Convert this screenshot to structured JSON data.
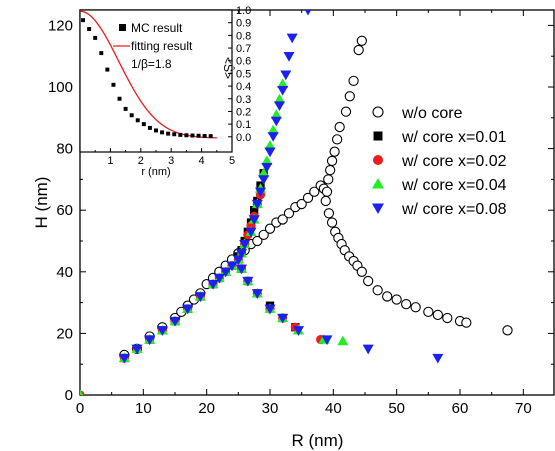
{
  "chart_data": [
    {
      "id": "main",
      "type": "scatter",
      "xlabel": "R (nm)",
      "ylabel": "H (nm)",
      "xlim": [
        0,
        75
      ],
      "ylim": [
        0,
        125
      ],
      "xticks": [
        "0",
        "10",
        "20",
        "30",
        "40",
        "50",
        "60",
        "70"
      ],
      "yticks": [
        "0",
        "20",
        "40",
        "60",
        "80",
        "100",
        "120"
      ],
      "legend_position": "right-middle",
      "series": [
        {
          "name": "w/o core",
          "marker": "open-circle",
          "color": "#000000",
          "points": [
            [
              7,
              13
            ],
            [
              9,
              15
            ],
            [
              11,
              19
            ],
            [
              13,
              22
            ],
            [
              15,
              25
            ],
            [
              16,
              27
            ],
            [
              17,
              29
            ],
            [
              18,
              31
            ],
            [
              19,
              33
            ],
            [
              20,
              36
            ],
            [
              21,
              38
            ],
            [
              22,
              40
            ],
            [
              23,
              42
            ],
            [
              24,
              44
            ],
            [
              25,
              46
            ],
            [
              26,
              47
            ],
            [
              27,
              49
            ],
            [
              28,
              50
            ],
            [
              29,
              52
            ],
            [
              30,
              54
            ],
            [
              31,
              56
            ],
            [
              32,
              57
            ],
            [
              33,
              59
            ],
            [
              34,
              61
            ],
            [
              35,
              62
            ],
            [
              36,
              64
            ],
            [
              37,
              66
            ],
            [
              38,
              68
            ],
            [
              38.5,
              67
            ],
            [
              39,
              66
            ],
            [
              39.2,
              70
            ],
            [
              39.5,
              73
            ],
            [
              39.8,
              76
            ],
            [
              40.2,
              79
            ],
            [
              40.6,
              83
            ],
            [
              41,
              87
            ],
            [
              42,
              92
            ],
            [
              42.6,
              97
            ],
            [
              43.2,
              102
            ],
            [
              44,
              112
            ],
            [
              44.5,
              115
            ],
            [
              38.8,
              63
            ],
            [
              39.3,
              59
            ],
            [
              39.8,
              56
            ],
            [
              40.3,
              53
            ],
            [
              40.8,
              51
            ],
            [
              41.3,
              49
            ],
            [
              41.8,
              47
            ],
            [
              42.5,
              45
            ],
            [
              43.2,
              43.5
            ],
            [
              43.8,
              42
            ],
            [
              44.5,
              40
            ],
            [
              45.5,
              37
            ],
            [
              47,
              34
            ],
            [
              48.5,
              32
            ],
            [
              50,
              31
            ],
            [
              51.5,
              29.5
            ],
            [
              53,
              28.5
            ],
            [
              55,
              27
            ],
            [
              56.5,
              26
            ],
            [
              58,
              25
            ],
            [
              60,
              24
            ],
            [
              61,
              23.5
            ],
            [
              67.5,
              21
            ]
          ]
        },
        {
          "name": "w/ core x=0.01",
          "marker": "square",
          "color": "#000000",
          "points": [
            [
              7,
              12
            ],
            [
              9,
              15
            ],
            [
              11,
              18
            ],
            [
              13,
              21
            ],
            [
              15,
              24
            ],
            [
              17,
              28
            ],
            [
              19,
              32
            ],
            [
              21,
              36
            ],
            [
              22,
              38
            ],
            [
              23,
              40
            ],
            [
              24,
              42
            ],
            [
              25,
              45
            ],
            [
              25.5,
              47
            ],
            [
              26,
              50
            ],
            [
              26.5,
              53
            ],
            [
              27,
              56
            ],
            [
              27.5,
              60
            ],
            [
              28,
              63
            ],
            [
              28.5,
              68
            ],
            [
              29,
              72
            ],
            [
              25.5,
              41
            ],
            [
              26.5,
              37
            ],
            [
              28,
              33
            ],
            [
              30,
              29
            ],
            [
              32,
              25
            ],
            [
              34,
              22
            ]
          ]
        },
        {
          "name": "w/ core x=0.02",
          "marker": "filled-circle",
          "color": "#ee1c1c",
          "points": [
            [
              0,
              0
            ],
            [
              7,
              12
            ],
            [
              9,
              15
            ],
            [
              11,
              18
            ],
            [
              13,
              21
            ],
            [
              15,
              24
            ],
            [
              17,
              28
            ],
            [
              19,
              32
            ],
            [
              21,
              36
            ],
            [
              22,
              38
            ],
            [
              23,
              40
            ],
            [
              24,
              42
            ],
            [
              25,
              44
            ],
            [
              25.5,
              46
            ],
            [
              26,
              49
            ],
            [
              26.5,
              52
            ],
            [
              27,
              55
            ],
            [
              27.5,
              58
            ],
            [
              28,
              62
            ],
            [
              28.5,
              65
            ],
            [
              25.5,
              41
            ],
            [
              26.5,
              37
            ],
            [
              28,
              33
            ],
            [
              30,
              28
            ],
            [
              32,
              25
            ],
            [
              34,
              22
            ],
            [
              38,
              18
            ]
          ]
        },
        {
          "name": "w/ core x=0.04",
          "marker": "triangle-up",
          "color": "#22ee22",
          "points": [
            [
              0,
              0
            ],
            [
              7,
              12
            ],
            [
              9,
              15
            ],
            [
              11,
              18
            ],
            [
              13,
              21
            ],
            [
              15,
              24
            ],
            [
              17,
              28
            ],
            [
              19,
              32
            ],
            [
              21,
              36
            ],
            [
              22,
              38
            ],
            [
              23,
              40
            ],
            [
              24,
              42
            ],
            [
              25,
              44
            ],
            [
              25.5,
              46
            ],
            [
              26,
              49
            ],
            [
              27,
              53
            ],
            [
              27.5,
              57
            ],
            [
              28,
              62
            ],
            [
              28.5,
              67
            ],
            [
              29,
              72
            ],
            [
              29.5,
              76
            ],
            [
              30,
              81
            ],
            [
              30.5,
              86
            ],
            [
              31,
              91
            ],
            [
              31.5,
              96
            ],
            [
              32,
              101
            ],
            [
              25.5,
              41
            ],
            [
              26.5,
              37
            ],
            [
              28,
              33
            ],
            [
              30,
              28
            ],
            [
              32,
              25
            ],
            [
              34.5,
              21
            ],
            [
              38.5,
              18
            ],
            [
              41.5,
              17.5
            ]
          ]
        },
        {
          "name": "w/ core x=0.08",
          "marker": "triangle-down",
          "color": "#1c22ee",
          "points": [
            [
              7,
              12
            ],
            [
              9,
              15
            ],
            [
              11,
              18
            ],
            [
              13,
              21
            ],
            [
              15,
              24
            ],
            [
              17,
              28
            ],
            [
              19,
              32
            ],
            [
              21,
              36
            ],
            [
              22,
              38
            ],
            [
              23,
              40
            ],
            [
              24,
              42
            ],
            [
              25,
              44
            ],
            [
              25.5,
              46
            ],
            [
              26,
              49
            ],
            [
              27,
              53
            ],
            [
              27.5,
              57
            ],
            [
              28,
              62
            ],
            [
              28.5,
              66
            ],
            [
              29,
              70
            ],
            [
              29.5,
              74
            ],
            [
              30,
              79
            ],
            [
              30.5,
              84
            ],
            [
              31,
              89
            ],
            [
              31.5,
              94
            ],
            [
              32,
              99
            ],
            [
              32.5,
              104
            ],
            [
              33,
              110
            ],
            [
              33.5,
              116
            ],
            [
              36,
              125
            ],
            [
              25.5,
              41
            ],
            [
              26.5,
              37
            ],
            [
              28,
              33
            ],
            [
              30,
              28
            ],
            [
              32,
              25
            ],
            [
              34.5,
              21
            ],
            [
              39,
              18
            ],
            [
              45.5,
              15
            ],
            [
              56.5,
              12
            ]
          ]
        }
      ]
    },
    {
      "id": "inset",
      "type": "scatter",
      "xlabel": "r (nm)",
      "ylabel": "<Ŝ>",
      "xlim": [
        0,
        5
      ],
      "ylim": [
        -0.12,
        1.0
      ],
      "xticks": [
        "1",
        "2",
        "3",
        "4",
        "5"
      ],
      "yticks": [
        "0.0",
        "0.1",
        "0.2",
        "0.3",
        "0.4",
        "0.5",
        "0.6",
        "0.7",
        "0.8",
        "0.9",
        "1.0"
      ],
      "annotation": "1/β=1.8",
      "legend_position": "top-right",
      "series": [
        {
          "name": "MC result",
          "marker": "square",
          "color": "#000000",
          "points": [
            [
              0.1,
              0.92
            ],
            [
              0.3,
              0.85
            ],
            [
              0.5,
              0.78
            ],
            [
              0.7,
              0.66
            ],
            [
              0.9,
              0.53
            ],
            [
              1.1,
              0.41
            ],
            [
              1.3,
              0.3
            ],
            [
              1.5,
              0.22
            ],
            [
              1.7,
              0.17
            ],
            [
              1.9,
              0.13
            ],
            [
              2.1,
              0.1
            ],
            [
              2.3,
              0.07
            ],
            [
              2.5,
              0.05
            ],
            [
              2.7,
              0.035
            ],
            [
              2.9,
              0.025
            ],
            [
              3.1,
              0.02
            ],
            [
              3.3,
              0.015
            ],
            [
              3.5,
              0.012
            ],
            [
              3.7,
              0.01
            ],
            [
              3.9,
              0.008
            ],
            [
              4.1,
              0.006
            ],
            [
              4.3,
              0.005
            ]
          ]
        },
        {
          "name": "fitting result",
          "marker": "line",
          "color": "#ee1c1c",
          "beta_inv": 1.8
        }
      ]
    }
  ]
}
